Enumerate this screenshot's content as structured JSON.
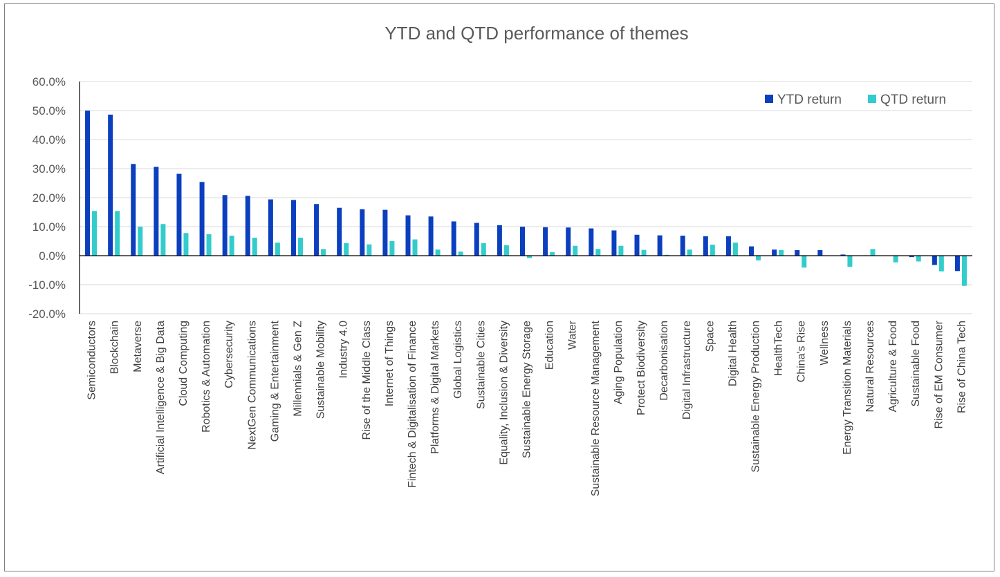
{
  "chart_data": {
    "type": "bar",
    "title": "YTD and QTD performance of themes",
    "xlabel": "",
    "ylabel": "",
    "ylim": [
      -20,
      60
    ],
    "yticks": [
      60,
      50,
      40,
      30,
      20,
      10,
      0,
      -10,
      -20
    ],
    "ytick_labels": [
      "60.0%",
      "50.0%",
      "40.0%",
      "30.0%",
      "20.0%",
      "10.0%",
      "0.0%",
      "-10.0%",
      "-20.0%"
    ],
    "grid": true,
    "legend_position": "top-right",
    "categories": [
      "Semiconductors",
      "Blockchain",
      "Metaverse",
      "Artificial Intelligence & Big Data",
      "Cloud Computing",
      "Robotics & Automation",
      "Cybersecurity",
      "NextGen Communications",
      "Gaming & Entertainment",
      "Millennials & Gen Z",
      "Sustainable Mobility",
      "Industry 4.0",
      "Rise of the Middle Class",
      "Internet of Things",
      "Fintech & Digitalisation of Finance",
      "Platforms & Digital Markets",
      "Global Logistics",
      "Sustainable Cities",
      "Equality, Inclusion & Diversity",
      "Sustainable Energy Storage",
      "Education",
      "Water",
      "Sustainable Resource Management",
      "Aging Population",
      "Protect Biodiversity",
      "Decarbonisation",
      "Digital Infrastructure",
      "Space",
      "Digital Health",
      "Sustainable Energy Production",
      "HealthTech",
      "China's Rise",
      "Wellness",
      "Energy Transition Materials",
      "Natural Resources",
      "Agriculture & Food",
      "Sustainable Food",
      "Rise of EM Consumer",
      "Rise of China Tech"
    ],
    "series": [
      {
        "name": "YTD return",
        "color": "#0b3fbf",
        "values": [
          50.0,
          48.6,
          31.6,
          30.6,
          28.2,
          25.4,
          20.9,
          20.6,
          19.4,
          19.2,
          17.8,
          16.5,
          16.0,
          15.8,
          13.9,
          13.5,
          11.8,
          11.3,
          10.5,
          10.0,
          9.8,
          9.7,
          9.4,
          8.7,
          7.2,
          7.0,
          6.9,
          6.7,
          6.7,
          3.2,
          2.1,
          1.9,
          1.9,
          0.4,
          0.0,
          0.0,
          -0.5,
          -3.2,
          -5.3
        ]
      },
      {
        "name": "QTD return",
        "color": "#33cccc",
        "values": [
          15.4,
          15.4,
          10.0,
          10.9,
          7.8,
          7.4,
          6.9,
          6.2,
          4.5,
          6.2,
          2.3,
          4.3,
          3.9,
          5.0,
          5.6,
          2.1,
          1.4,
          4.3,
          3.6,
          -0.8,
          1.2,
          3.4,
          2.3,
          3.4,
          2.0,
          0.3,
          2.1,
          3.8,
          4.5,
          -1.6,
          1.9,
          -4.1,
          0.0,
          -3.8,
          2.3,
          -2.3,
          -2.0,
          -5.4,
          -10.4
        ]
      }
    ]
  }
}
